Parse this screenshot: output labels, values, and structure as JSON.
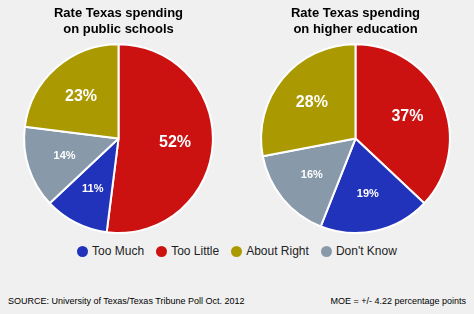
{
  "chart_data": [
    {
      "type": "pie",
      "title": "Rate Texas spending\non public schools",
      "categories": [
        "Too Little",
        "Too Much",
        "Don't Know",
        "About Right"
      ],
      "values": [
        52,
        11,
        14,
        23
      ],
      "value_labels": [
        "52%",
        "11%",
        "14%",
        "23%"
      ],
      "colors": [
        "#cc1111",
        "#2233bb",
        "#8899aa",
        "#aa9900"
      ],
      "data_labels": true
    },
    {
      "type": "pie",
      "title": "Rate Texas spending\non higher education",
      "categories": [
        "Too Little",
        "Too Much",
        "Don't Know",
        "About Right"
      ],
      "values": [
        37,
        19,
        16,
        28
      ],
      "value_labels": [
        "37%",
        "19%",
        "16%",
        "28%"
      ],
      "colors": [
        "#cc1111",
        "#2233bb",
        "#8899aa",
        "#aa9900"
      ],
      "data_labels": true
    }
  ],
  "legend": "bottom",
  "legend_entries": [
    {
      "name": "Too Much",
      "color": "#2233bb"
    },
    {
      "name": "Too Little",
      "color": "#cc1111"
    },
    {
      "name": "About Right",
      "color": "#aa9900"
    },
    {
      "name": "Don't Know",
      "color": "#8899aa"
    }
  ],
  "annotations": [
    "SOURCE: University of Texas/Texas Tribune Poll Oct. 2012",
    "MOE = +/- 4.22 percentage points"
  ]
}
